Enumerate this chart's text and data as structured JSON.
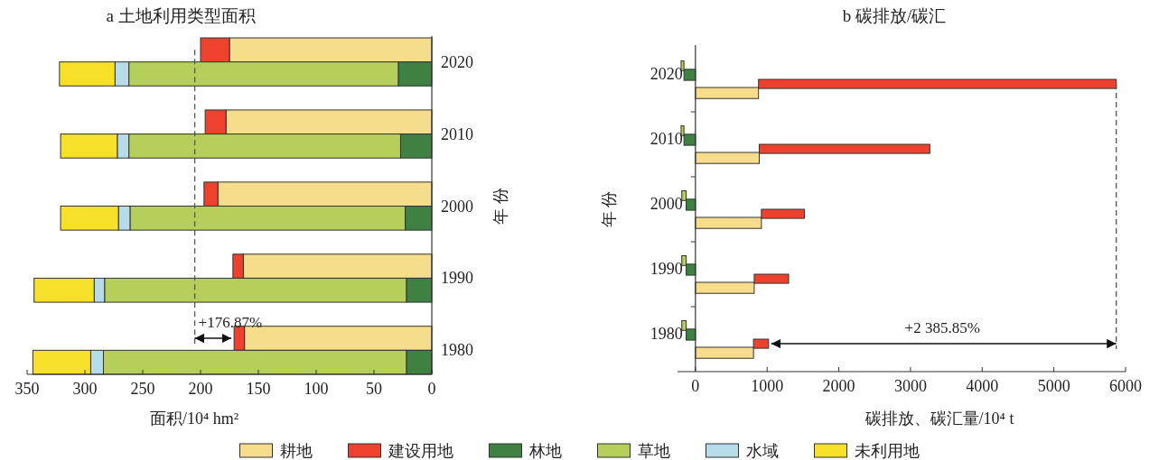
{
  "chart_data": [
    {
      "type": "bar",
      "orientation": "horizontal",
      "stacked": true,
      "title": "a 土地利用类型面积",
      "xlabel": "面积/10⁴ hm²",
      "ylabel": "年 份",
      "categories": [
        "2020",
        null,
        null,
        "2010",
        null,
        null,
        "2000",
        null,
        null,
        "1990",
        null,
        null,
        "1980",
        null
      ],
      "series": [
        {
          "name": "耕地",
          "color": "#f6dd8b",
          "values": [
            175,
            null,
            null,
            178,
            null,
            null,
            185,
            null,
            null,
            163,
            null,
            null,
            162,
            null
          ]
        },
        {
          "name": "建设用地",
          "color": "#ee412e",
          "values": [
            25,
            null,
            null,
            18,
            null,
            null,
            12,
            null,
            null,
            9,
            null,
            null,
            9,
            null
          ]
        },
        {
          "name": "林地",
          "color": "#3f8142",
          "values": [
            null,
            29,
            null,
            null,
            27,
            null,
            null,
            23,
            null,
            null,
            22,
            null,
            null,
            22
          ]
        },
        {
          "name": "草地",
          "color": "#b5cf5a",
          "values": [
            null,
            233,
            null,
            null,
            235,
            null,
            null,
            238,
            null,
            null,
            261,
            null,
            null,
            262
          ]
        },
        {
          "name": "水域",
          "color": "#b6dcea",
          "values": [
            null,
            12,
            null,
            null,
            10,
            null,
            null,
            10,
            null,
            null,
            9,
            null,
            null,
            11
          ]
        },
        {
          "name": "未利用地",
          "color": "#f6e02a",
          "values": [
            null,
            48,
            null,
            null,
            49,
            null,
            null,
            50,
            null,
            null,
            52,
            null,
            null,
            50
          ]
        }
      ],
      "xlim": [
        350,
        0
      ],
      "xticks": [
        0,
        50,
        100,
        150,
        200,
        250,
        300,
        350
      ],
      "legend": "bottom",
      "ref_lines": [
        {
          "axis": "x",
          "value": 205,
          "line_style": "dashed",
          "color": "#555555"
        }
      ],
      "annotations": [
        "+176.87%"
      ]
    },
    {
      "type": "bar",
      "orientation": "horizontal",
      "stacked": true,
      "title": "b 碳排放/碳汇",
      "xlabel": "碳排放、碳汇量/10⁴ t",
      "ylabel": "年 份",
      "categories": [
        "2020",
        "2010",
        "2000",
        "1990",
        "1980"
      ],
      "series": [
        {
          "color": "#f6dd8b",
          "values": [
            880,
            890,
            920,
            820,
            810
          ]
        },
        {
          "color": "#ee412e",
          "values": [
            4990,
            2380,
            600,
            480,
            210
          ]
        },
        {
          "color": "#3f8142",
          "values": [
            -160,
            -160,
            -130,
            -130,
            -130
          ]
        },
        {
          "color": "#b5cf5a",
          "values": [
            -40,
            -40,
            -60,
            -60,
            -60
          ]
        }
      ],
      "xlim": [
        -250,
        6000
      ],
      "xticks": [
        0,
        1000,
        2000,
        3000,
        4000,
        5000,
        6000
      ],
      "ref_lines": [
        {
          "axis": "x",
          "value": 5870,
          "line_style": "dashed",
          "color": "#555555"
        }
      ],
      "annotations": [
        "+2 385.85%"
      ]
    }
  ]
}
